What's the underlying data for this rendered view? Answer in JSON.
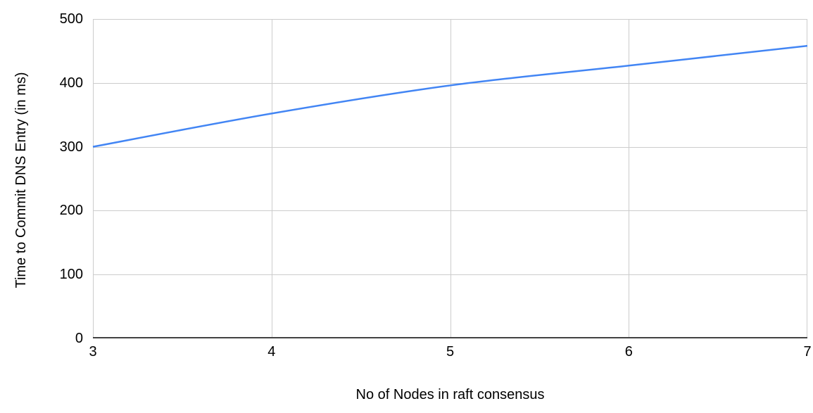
{
  "figure": {
    "background": "#ffffff"
  },
  "chart_data": {
    "type": "line",
    "title": "",
    "xlabel": "No of Nodes in raft consensus",
    "ylabel": "Time to Commit DNS Entry (in ms)",
    "x": [
      3,
      4,
      5,
      6,
      7
    ],
    "series": [
      {
        "name": "Time to Commit DNS Entry (in ms)",
        "values": [
          300,
          352,
          396,
          427,
          458
        ]
      }
    ],
    "xlim": [
      3,
      7
    ],
    "ylim": [
      0,
      500
    ],
    "x_ticks": [
      3,
      4,
      5,
      6,
      7
    ],
    "y_ticks": [
      0,
      100,
      200,
      300,
      400,
      500
    ],
    "grid": true,
    "legend_position": "none",
    "line_smooth": true,
    "line_width": 2.5,
    "colors": {
      "series": "#4285f4",
      "gridline": "#cccccc",
      "axis_line": "#424242",
      "text": "#000000"
    }
  }
}
